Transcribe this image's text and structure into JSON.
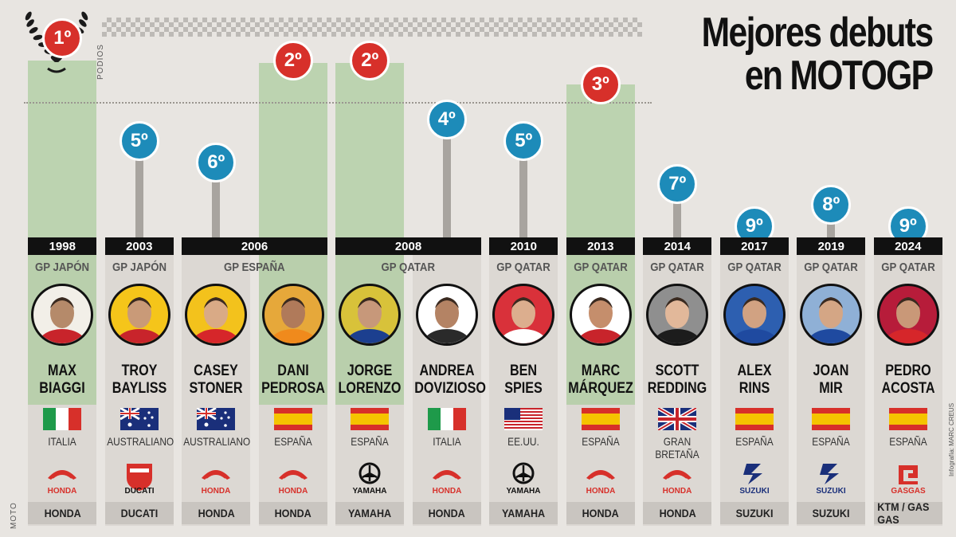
{
  "title_line1": "Mejores debuts",
  "title_line2": "en MOTOGP",
  "podios_label": "PODIOS",
  "moto_label": "MOTO",
  "credit": "Infografía: MARC CREUS",
  "colors": {
    "green": "#adcc9f",
    "blue": "#1d8bb9",
    "red": "#d7302a"
  },
  "chart_data": {
    "type": "bar",
    "ylabel": "PODIOS",
    "y_axis": "finishing position (1 = best)",
    "categories": [
      "MAX BIAGGI",
      "TROY BAYLISS",
      "CASEY STONER",
      "DANI PEDROSA",
      "JORGE LORENZO",
      "ANDREA DOVIZIOSO",
      "BEN SPIES",
      "MARC MÁRQUEZ",
      "SCOTT REDDING",
      "ALEX RINS",
      "JOAN MIR",
      "PEDRO ACOSTA"
    ],
    "values": [
      1,
      5,
      6,
      2,
      2,
      4,
      5,
      3,
      7,
      9,
      8,
      9
    ],
    "value_labels": [
      "1º",
      "5º",
      "6º",
      "2º",
      "2º",
      "4º",
      "5º",
      "3º",
      "7º",
      "9º",
      "8º",
      "9º"
    ],
    "podium": [
      true,
      false,
      false,
      true,
      true,
      false,
      false,
      true,
      false,
      false,
      false,
      false
    ]
  },
  "years": [
    {
      "label": "1998",
      "start": 0,
      "span": 1
    },
    {
      "label": "2003",
      "start": 1,
      "span": 1
    },
    {
      "label": "2006",
      "start": 2,
      "span": 2
    },
    {
      "label": "2008",
      "start": 4,
      "span": 2
    },
    {
      "label": "2010",
      "start": 6,
      "span": 1
    },
    {
      "label": "2013",
      "start": 7,
      "span": 1
    },
    {
      "label": "2014",
      "start": 8,
      "span": 1
    },
    {
      "label": "2017",
      "start": 9,
      "span": 1
    },
    {
      "label": "2019",
      "start": 10,
      "span": 1
    },
    {
      "label": "2024",
      "start": 11,
      "span": 1
    }
  ],
  "gps": [
    {
      "label": "GP JAPÓN",
      "start": 0,
      "span": 1
    },
    {
      "label": "GP JAPÓN",
      "start": 1,
      "span": 1
    },
    {
      "label": "GP ESPAÑA",
      "start": 2,
      "span": 2
    },
    {
      "label": "GP QATAR",
      "start": 4,
      "span": 2
    },
    {
      "label": "GP QATAR",
      "start": 6,
      "span": 1
    },
    {
      "label": "GP QATAR",
      "start": 7,
      "span": 1
    },
    {
      "label": "GP QATAR",
      "start": 8,
      "span": 1
    },
    {
      "label": "GP QATAR",
      "start": 9,
      "span": 1
    },
    {
      "label": "GP QATAR",
      "start": 10,
      "span": 1
    },
    {
      "label": "GP QATAR",
      "start": 11,
      "span": 1
    }
  ],
  "riders": [
    {
      "name1": "MAX",
      "name2": "BIAGGI",
      "country": "ITALIA",
      "flag": "it",
      "brand_icon": "honda",
      "moto": "HONDA",
      "face": "#b58a6a",
      "bg": "#f2efe8",
      "kit": "#c8242b"
    },
    {
      "name1": "TROY",
      "name2": "BAYLISS",
      "country": "AUSTRALIANO",
      "flag": "au",
      "brand_icon": "ducati",
      "moto": "DUCATI",
      "face": "#c99a78",
      "bg": "#f5c51a",
      "kit": "#c8242b"
    },
    {
      "name1": "CASEY",
      "name2": "STONER",
      "country": "AUSTRALIANO",
      "flag": "au",
      "brand_icon": "honda",
      "moto": "HONDA",
      "face": "#d9aa86",
      "bg": "#f3c21c",
      "kit": "#d6262a"
    },
    {
      "name1": "DANI",
      "name2": "PEDROSA",
      "country": "ESPAÑA",
      "flag": "es",
      "brand_icon": "honda",
      "moto": "HONDA",
      "face": "#b07a5a",
      "bg": "#e6a83a",
      "kit": "#f08a1c"
    },
    {
      "name1": "JORGE",
      "name2": "LORENZO",
      "country": "ESPAÑA",
      "flag": "es",
      "brand_icon": "yamaha",
      "moto": "YAMAHA",
      "face": "#c7987a",
      "bg": "#d8c23a",
      "kit": "#1c3f8f"
    },
    {
      "name1": "ANDREA",
      "name2": "DOVIZIOSO",
      "country": "ITALIA",
      "flag": "it",
      "brand_icon": "honda",
      "moto": "HONDA",
      "face": "#b48364",
      "bg": "#ffffff",
      "kit": "#2a2a2a"
    },
    {
      "name1": "BEN",
      "name2": "SPIES",
      "country": "EE.UU.",
      "flag": "us",
      "brand_icon": "yamaha",
      "moto": "YAMAHA",
      "face": "#dcae8e",
      "bg": "#d9313a",
      "kit": "#ffffff"
    },
    {
      "name1": "MARC",
      "name2": "MÁRQUEZ",
      "country": "ESPAÑA",
      "flag": "es",
      "brand_icon": "honda",
      "moto": "HONDA",
      "face": "#c58e6c",
      "bg": "#ffffff",
      "kit": "#c8242b"
    },
    {
      "name1": "SCOTT",
      "name2": "REDDING",
      "country": "GRAN BRETAÑA",
      "flag": "gb",
      "brand_icon": "honda",
      "moto": "HONDA",
      "face": "#e2b89a",
      "bg": "#8f8f8f",
      "kit": "#1c1c1c"
    },
    {
      "name1": "ALEX",
      "name2": "RINS",
      "country": "ESPAÑA",
      "flag": "es",
      "brand_icon": "suzuki",
      "moto": "SUZUKI",
      "face": "#d1a282",
      "bg": "#2d5fb0",
      "kit": "#1f4aa0"
    },
    {
      "name1": "JOAN",
      "name2": "MIR",
      "country": "ESPAÑA",
      "flag": "es",
      "brand_icon": "suzuki",
      "moto": "SUZUKI",
      "face": "#d4a685",
      "bg": "#8fb0d6",
      "kit": "#1f4aa0"
    },
    {
      "name1": "PEDRO",
      "name2": "ACOSTA",
      "country": "ESPAÑA",
      "flag": "es",
      "brand_icon": "gasgas",
      "moto": "KTM / GAS GAS",
      "face": "#c99878",
      "bg": "#b71c3a",
      "kit": "#d6262a"
    }
  ],
  "brand_text": {
    "honda": "HONDA",
    "ducati": "DUCATI",
    "yamaha": "YAMAHA",
    "suzuki": "SUZUKI",
    "gasgas": "GASGAS"
  }
}
